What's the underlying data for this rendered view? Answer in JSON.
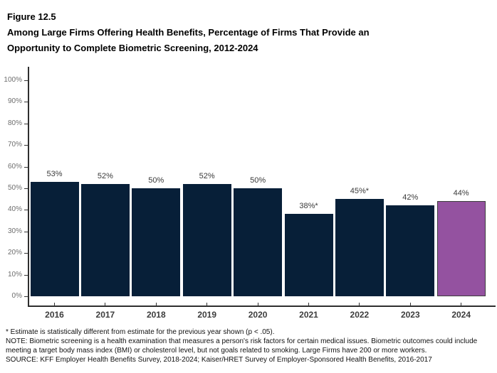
{
  "header": {
    "figure_label": "Figure 12.5",
    "title": "Among Large Firms Offering Health Benefits, Percentage of Firms That Provide an Opportunity to Complete Biometric Screening, 2012-2024",
    "title_lines": [
      "Among Large Firms Offering Health Benefits, Percentage of Firms That Provide an",
      "Opportunity to Complete Biometric Screening, 2012-2024"
    ]
  },
  "chart_data": {
    "type": "bar",
    "title": "Among Large Firms Offering Health Benefits, Percentage of Firms That Provide an Opportunity to Complete Biometric Screening, 2012-2024",
    "categories": [
      "2016",
      "2017",
      "2018",
      "2019",
      "2020",
      "2021",
      "2022",
      "2023",
      "2024"
    ],
    "values": [
      53,
      52,
      50,
      52,
      50,
      38,
      45,
      42,
      44
    ],
    "bar_labels": [
      "53%",
      "52%",
      "50%",
      "52%",
      "50%",
      "38%*",
      "45%*",
      "42%",
      "44%"
    ],
    "xlabel": "",
    "ylabel": "",
    "ylim": [
      0,
      100
    ],
    "ytick_interval": 10,
    "ytick_labels": [
      "0%",
      "10%",
      "20%",
      "30%",
      "40%",
      "50%",
      "60%",
      "70%",
      "80%",
      "90%",
      "100%"
    ],
    "grid": false,
    "legend": "none",
    "highlight_index": 8,
    "colors": {
      "bar": "#071F38",
      "highlight_bar": "#9452A0",
      "highlight_border": "#3D3D3D",
      "axis": "#2E2E2E"
    }
  },
  "footnotes": {
    "asterisk": "* Estimate is statistically different from estimate for the previous year shown (p < .05).",
    "note_lines": [
      "NOTE: Biometric screening is a health examination that measures a person's risk factors for certain medical issues. Biometric outcomes could include",
      "meeting a target body mass index (BMI) or cholesterol level, but not goals related to smoking. Large Firms have 200 or more workers."
    ],
    "source": "SOURCE: KFF Employer Health Benefits Survey, 2018-2024; Kaiser/HRET Survey of Employer-Sponsored Health Benefits, 2016-2017"
  }
}
